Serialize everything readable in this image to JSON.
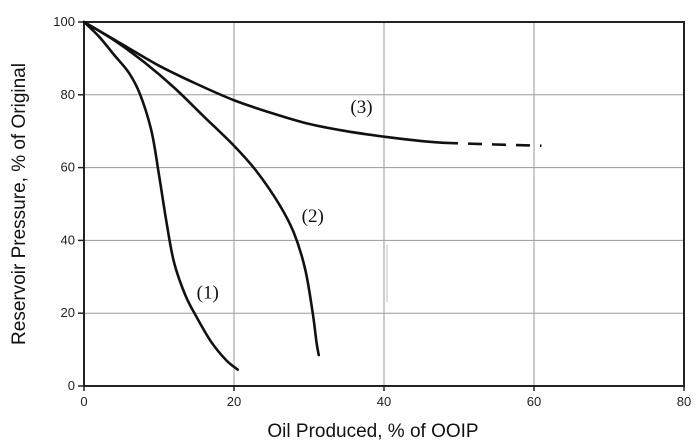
{
  "chart_data": {
    "type": "line",
    "xlabel": "Oil Produced, % of OOIP",
    "ylabel": "Reservoir Pressure, % of Original",
    "xlim": [
      0,
      80
    ],
    "ylim": [
      0,
      100
    ],
    "xticks": [
      0,
      20,
      40,
      60,
      80
    ],
    "yticks": [
      0,
      20,
      40,
      60,
      80,
      100
    ],
    "x_tick_labels": [
      "0",
      "20",
      "40",
      "60",
      "80"
    ],
    "y_tick_labels": [
      "0",
      "20",
      "40",
      "60",
      "80",
      "100"
    ],
    "grid": true,
    "line_color": "#111111",
    "series": [
      {
        "name": "(1)",
        "points": [
          [
            0,
            100
          ],
          [
            2,
            96
          ],
          [
            4,
            91
          ],
          [
            6,
            86
          ],
          [
            7.5,
            80
          ],
          [
            9,
            70
          ],
          [
            10,
            58
          ],
          [
            11,
            45
          ],
          [
            12,
            34
          ],
          [
            13.5,
            25
          ],
          [
            15,
            19
          ],
          [
            17,
            12
          ],
          [
            19,
            7
          ],
          [
            20.5,
            4.5
          ]
        ]
      },
      {
        "name": "(2)",
        "points": [
          [
            0,
            100
          ],
          [
            4,
            95
          ],
          [
            8,
            89
          ],
          [
            12,
            82
          ],
          [
            16,
            74
          ],
          [
            20,
            66
          ],
          [
            23,
            59
          ],
          [
            26,
            50
          ],
          [
            28,
            42
          ],
          [
            29.5,
            32
          ],
          [
            30.5,
            20
          ],
          [
            31,
            12
          ],
          [
            31.3,
            8.5
          ]
        ]
      },
      {
        "name": "(3)",
        "points": [
          [
            0,
            100
          ],
          [
            5,
            94
          ],
          [
            10,
            88
          ],
          [
            15,
            83
          ],
          [
            20,
            78.5
          ],
          [
            25,
            75
          ],
          [
            30,
            72
          ],
          [
            35,
            70
          ],
          [
            40,
            68.5
          ],
          [
            45,
            67.3
          ],
          [
            48,
            66.8
          ]
        ]
      },
      {
        "name": "(3) extrapolated",
        "style": "dashed",
        "points": [
          [
            48,
            66.8
          ],
          [
            54,
            66.4
          ],
          [
            61,
            66
          ]
        ]
      }
    ],
    "annotations": [
      {
        "text": "(1)",
        "x": 16.5,
        "y": 24
      },
      {
        "text": "(2)",
        "x": 30.5,
        "y": 45
      },
      {
        "text": "(3)",
        "x": 37,
        "y": 75
      }
    ]
  }
}
